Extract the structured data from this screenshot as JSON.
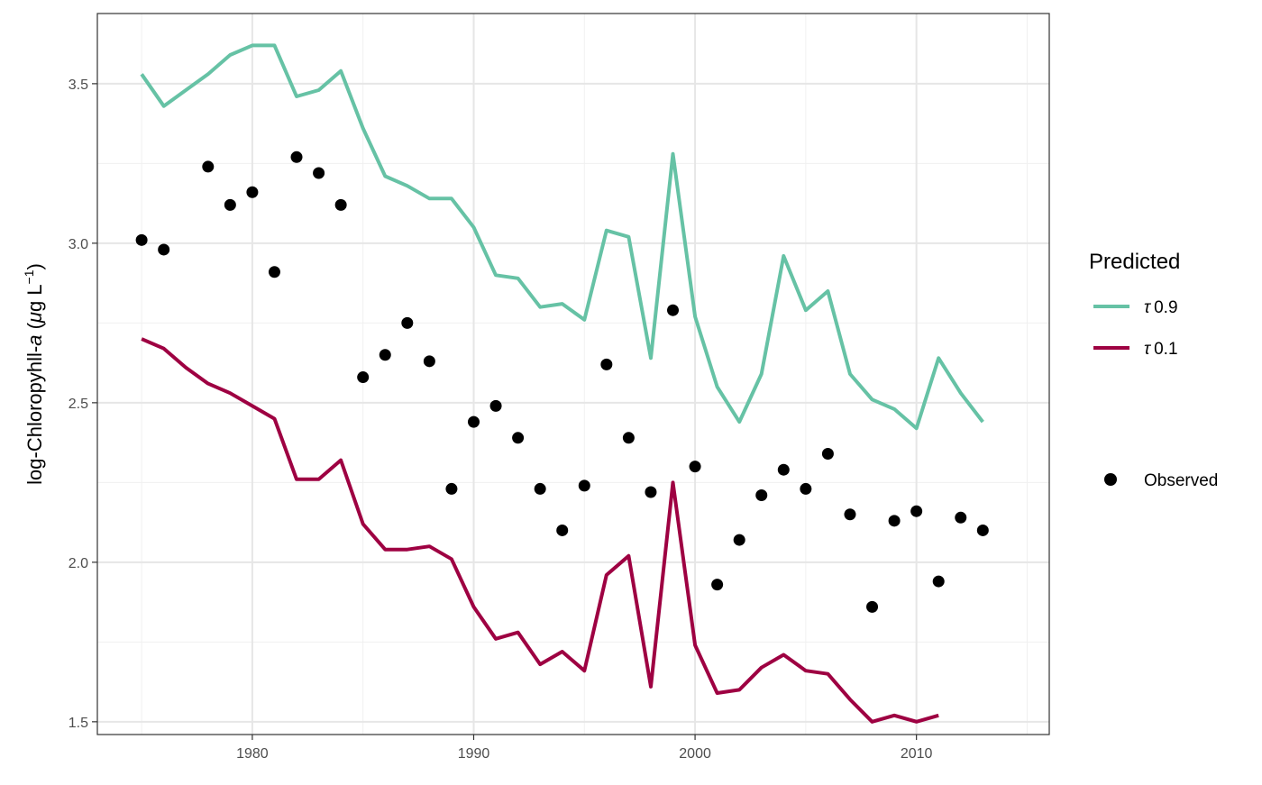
{
  "chart_data": {
    "type": "line",
    "title": "",
    "xlabel": "",
    "ylabel": {
      "prefix": "log-Chloropyhll-",
      "italic": "a",
      "open": " (",
      "mu": "μ",
      "unit": "g L",
      "exponent": "−1",
      "close": ")"
    },
    "xlim": [
      1973,
      2016
    ],
    "ylim": [
      1.46,
      3.72
    ],
    "x_ticks": [
      1980,
      1990,
      2000,
      2010
    ],
    "x_tick_labels": [
      "1980",
      "1990",
      "2000",
      "2010"
    ],
    "x_minor_ticks": [
      1975,
      1985,
      1995,
      2005,
      2015
    ],
    "y_ticks": [
      1.5,
      2.0,
      2.5,
      3.0,
      3.5
    ],
    "y_tick_labels": [
      "1.5",
      "2.0",
      "2.5",
      "3.0",
      "3.5"
    ],
    "y_minor_ticks": [
      1.75,
      2.25,
      2.75,
      3.25
    ],
    "grid": true,
    "legend_position": "right",
    "legend": {
      "title": "Predicted",
      "tau_symbol": "τ",
      "observed_label": "Observed"
    },
    "series": [
      {
        "name": "0.9",
        "kind": "line",
        "color": "#66c2a5",
        "x": [
          1975,
          1976,
          1977,
          1978,
          1979,
          1980,
          1981,
          1982,
          1983,
          1984,
          1985,
          1986,
          1987,
          1988,
          1989,
          1990,
          1991,
          1992,
          1993,
          1994,
          1995,
          1996,
          1997,
          1998,
          1999,
          2000,
          2001,
          2002,
          2003,
          2004,
          2005,
          2006,
          2007,
          2008,
          2009,
          2010,
          2011,
          2012,
          2013
        ],
        "y": [
          3.53,
          3.43,
          3.48,
          3.53,
          3.59,
          3.62,
          3.62,
          3.46,
          3.48,
          3.54,
          3.36,
          3.21,
          3.18,
          3.14,
          3.14,
          3.05,
          2.9,
          2.89,
          2.8,
          2.81,
          2.76,
          3.04,
          3.02,
          2.64,
          3.28,
          2.77,
          2.55,
          2.44,
          2.59,
          2.96,
          2.79,
          2.85,
          2.59,
          2.51,
          2.48,
          2.42,
          2.64,
          2.53,
          2.44
        ]
      },
      {
        "name": "0.1",
        "kind": "line",
        "color": "#9e0142",
        "x": [
          1975,
          1976,
          1977,
          1978,
          1979,
          1980,
          1981,
          1982,
          1983,
          1984,
          1985,
          1986,
          1987,
          1988,
          1989,
          1990,
          1991,
          1992,
          1993,
          1994,
          1995,
          1996,
          1997,
          1998,
          1999,
          2000,
          2001,
          2002,
          2003,
          2004,
          2005,
          2006,
          2007,
          2008,
          2009,
          2010,
          2011
        ],
        "y": [
          2.7,
          2.67,
          2.61,
          2.56,
          2.53,
          2.49,
          2.45,
          2.26,
          2.26,
          2.32,
          2.12,
          2.04,
          2.04,
          2.05,
          2.01,
          1.86,
          1.76,
          1.78,
          1.68,
          1.72,
          1.66,
          1.96,
          2.02,
          1.61,
          2.25,
          1.74,
          1.59,
          1.6,
          1.67,
          1.71,
          1.66,
          1.65,
          1.57,
          1.5,
          1.52,
          1.5,
          1.52
        ]
      },
      {
        "name": "Observed",
        "kind": "points",
        "color": "#000000",
        "x": [
          1975,
          1976,
          1978,
          1979,
          1980,
          1981,
          1982,
          1983,
          1984,
          1985,
          1986,
          1987,
          1988,
          1989,
          1990,
          1991,
          1992,
          1993,
          1994,
          1995,
          1996,
          1997,
          1998,
          1999,
          2000,
          2001,
          2002,
          2003,
          2004,
          2005,
          2006,
          2007,
          2008,
          2009,
          2010,
          2011,
          2012,
          2013
        ],
        "y": [
          3.01,
          2.98,
          3.24,
          3.12,
          3.16,
          2.91,
          3.27,
          3.22,
          3.12,
          2.58,
          2.65,
          2.75,
          2.63,
          2.23,
          2.44,
          2.49,
          2.39,
          2.23,
          2.1,
          2.24,
          2.62,
          2.39,
          2.22,
          2.79,
          2.3,
          1.93,
          2.07,
          2.21,
          2.29,
          2.23,
          2.34,
          2.15,
          1.86,
          2.13,
          2.16,
          1.94,
          2.14,
          2.1
        ]
      }
    ]
  }
}
